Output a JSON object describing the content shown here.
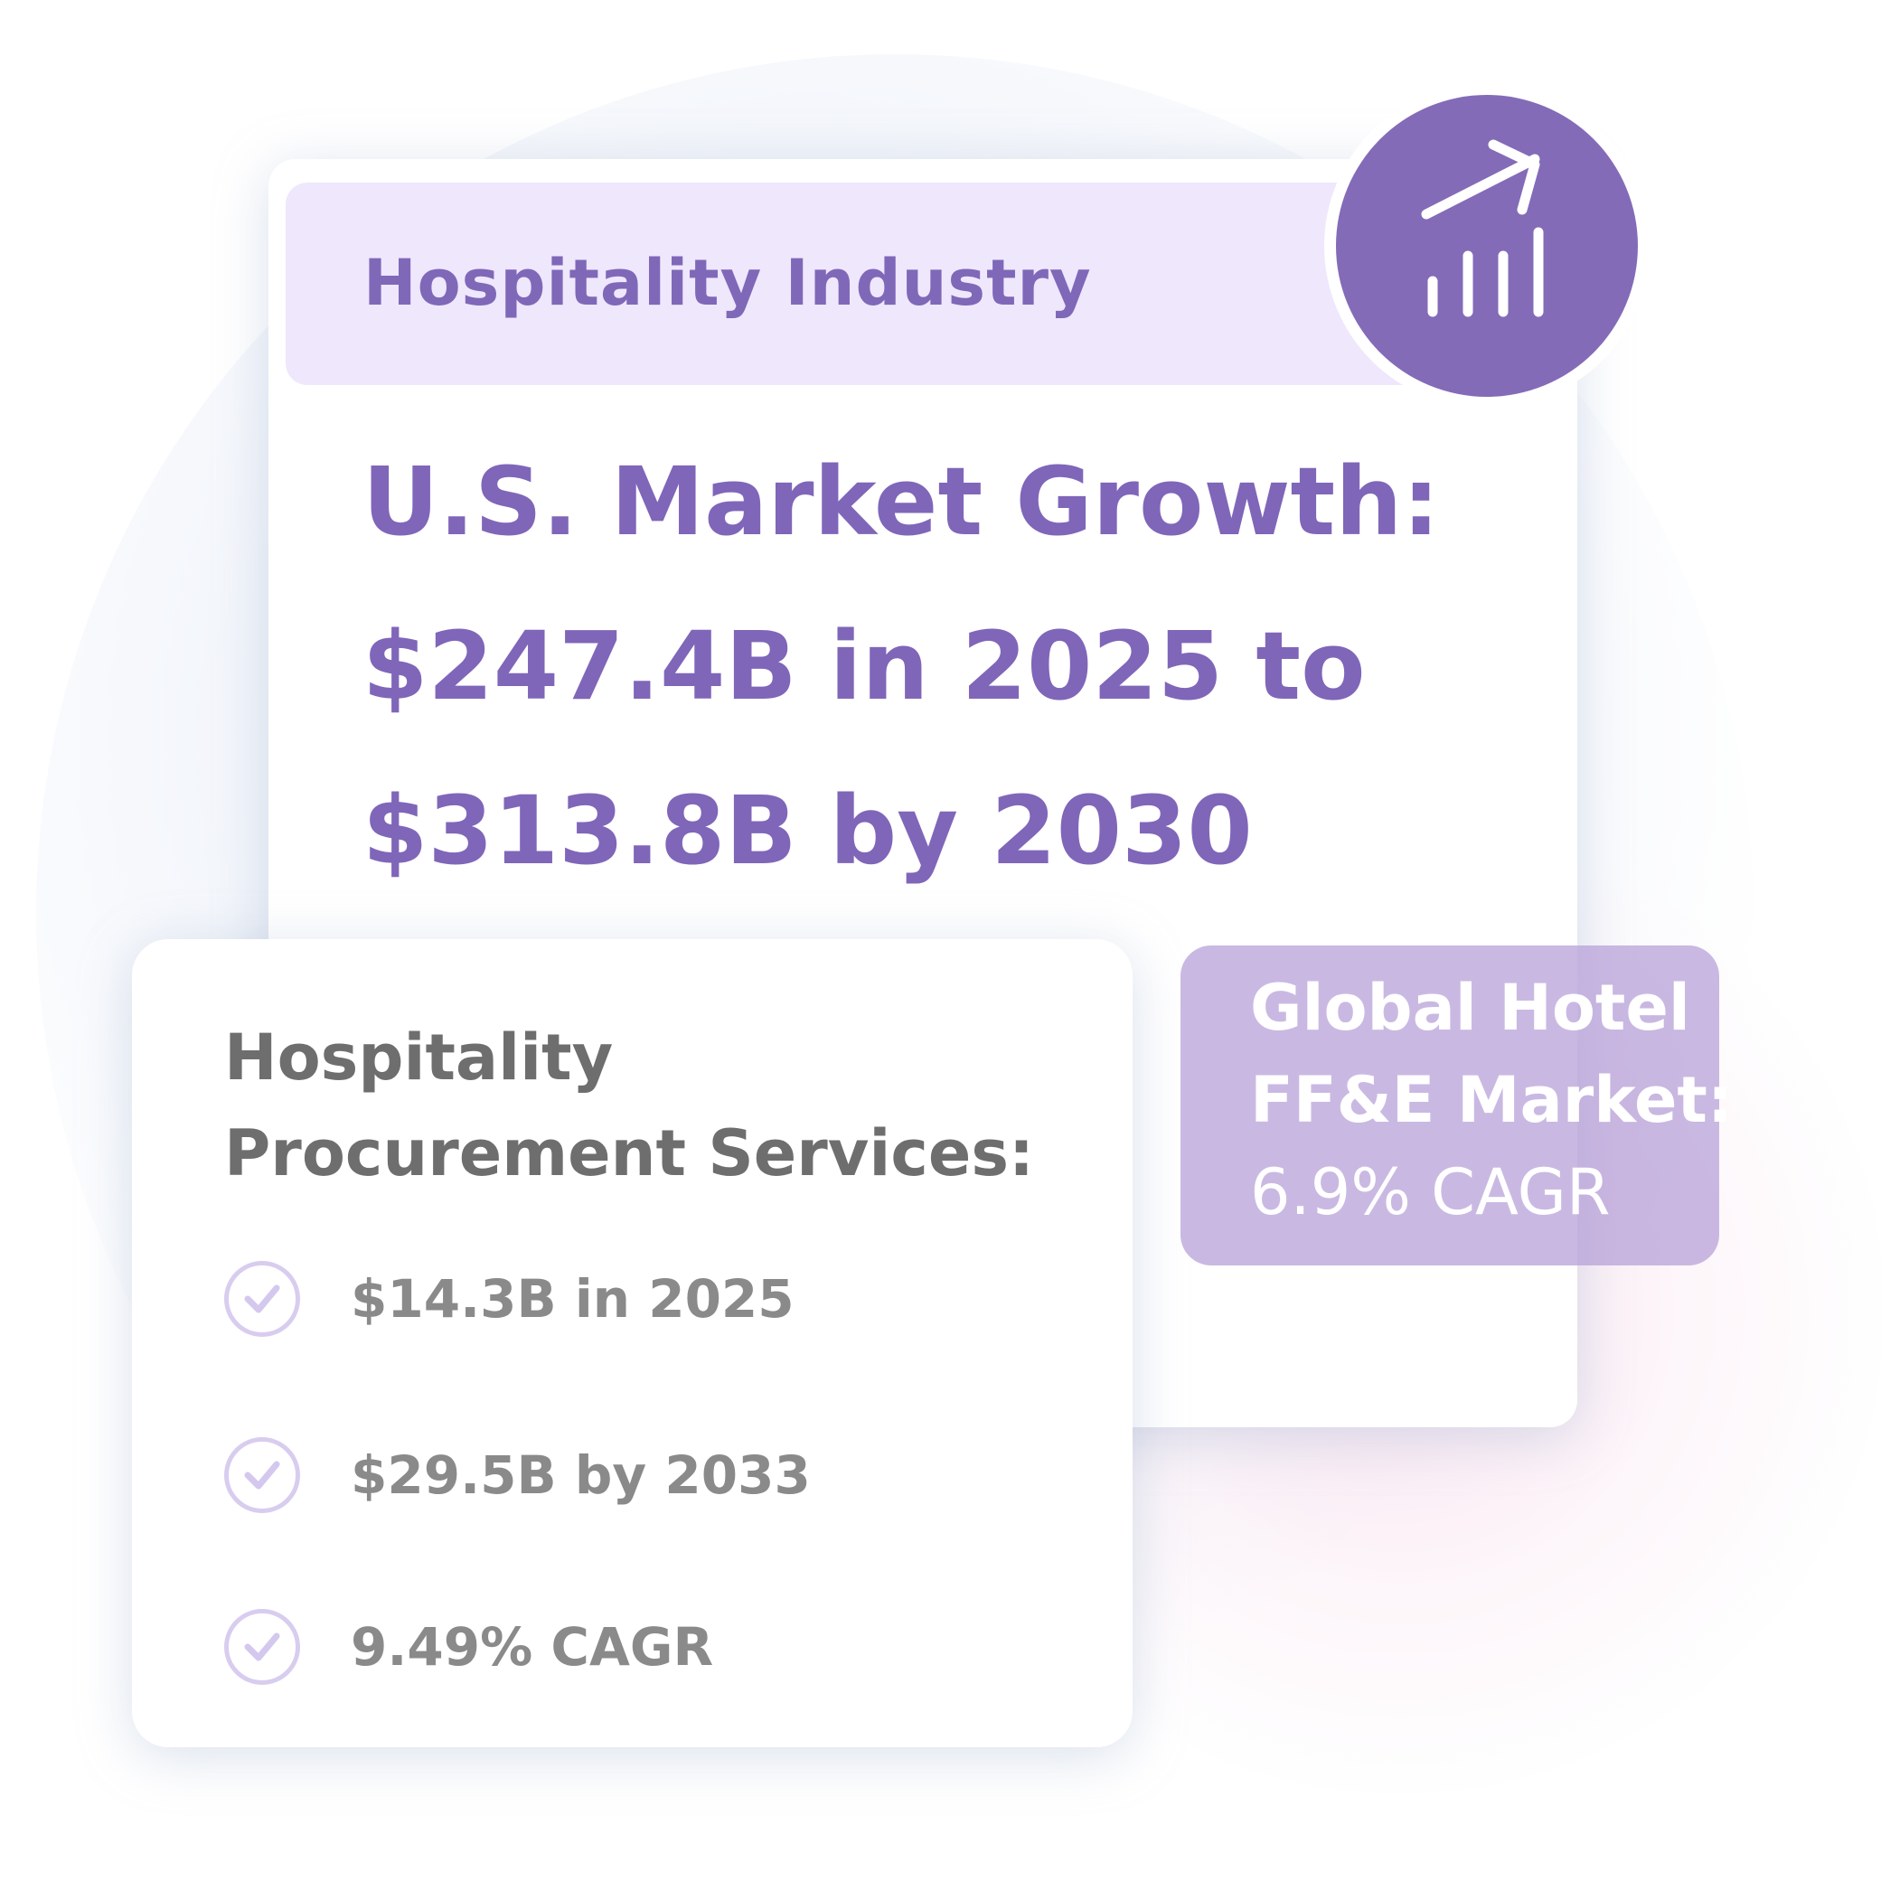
{
  "main_card": {
    "header": "Hospitality Industry",
    "headline_lines": [
      "U.S. Market Growth:",
      "$247.4B in 2025 to",
      "$313.8B by 2030"
    ],
    "icon": "trending-chart-icon"
  },
  "procurement_card": {
    "title": "Hospitality Procurement Services:",
    "items": [
      {
        "icon": "check-circle-icon",
        "text": "$14.3B in 2025"
      },
      {
        "icon": "check-circle-icon",
        "text": "$29.5B by 2033"
      },
      {
        "icon": "check-circle-icon",
        "text": "9.49% CAGR"
      }
    ]
  },
  "global_box": {
    "lines": [
      "Global Hotel",
      "FF&E Market:",
      "6.9% CAGR"
    ]
  },
  "colors": {
    "accent": "#836bb8",
    "header_bg": "#efe7fc",
    "text_gray": "#8a8a8a",
    "check": "#d8cdef"
  }
}
